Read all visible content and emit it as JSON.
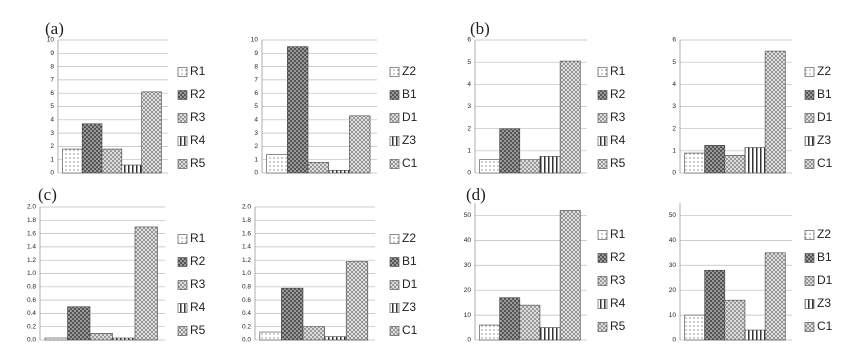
{
  "chart_data": [
    {
      "type": "bar",
      "panel_label": "(a)",
      "categories": [
        "R1",
        "R2",
        "R3",
        "R4",
        "R5"
      ],
      "values": [
        1.8,
        3.7,
        1.8,
        0.6,
        6.1
      ],
      "ylim": [
        0,
        10
      ],
      "yticks": [
        0,
        1,
        2,
        3,
        4,
        5,
        6,
        7,
        8,
        9,
        10
      ],
      "grid": true
    },
    {
      "type": "bar",
      "categories": [
        "Z2",
        "B1",
        "D1",
        "Z3",
        "C1"
      ],
      "values": [
        1.4,
        9.5,
        0.8,
        0.2,
        4.3
      ],
      "ylim": [
        0,
        10
      ],
      "yticks": [
        0,
        1,
        2,
        3,
        4,
        5,
        6,
        7,
        8,
        9,
        10
      ],
      "grid": true
    },
    {
      "type": "bar",
      "panel_label": "(b)",
      "categories": [
        "R1",
        "R2",
        "R3",
        "R4",
        "R5"
      ],
      "values": [
        0.6,
        2.0,
        0.6,
        0.75,
        5.05
      ],
      "ylim": [
        0,
        6
      ],
      "yticks": [
        0,
        1,
        2,
        3,
        4,
        5,
        6
      ],
      "grid": true
    },
    {
      "type": "bar",
      "categories": [
        "Z2",
        "B1",
        "D1",
        "Z3",
        "C1"
      ],
      "values": [
        0.9,
        1.25,
        0.8,
        1.15,
        5.5
      ],
      "ylim": [
        0,
        6
      ],
      "yticks": [
        0,
        1,
        2,
        3,
        4,
        5,
        6
      ],
      "grid": true
    },
    {
      "type": "bar",
      "panel_label": "(c)",
      "categories": [
        "R1",
        "R2",
        "R3",
        "R4",
        "R5"
      ],
      "values": [
        0.03,
        0.5,
        0.1,
        0.03,
        1.7
      ],
      "ylim": [
        0,
        2
      ],
      "yticks": [
        {
          "value": 0,
          "label": "0.0"
        },
        0.2,
        0.4,
        0.6,
        0.8,
        {
          "value": 1,
          "label": "1.0"
        },
        1.2,
        1.4,
        1.6,
        1.8,
        {
          "value": 2,
          "label": "2.0"
        }
      ],
      "grid": true
    },
    {
      "type": "bar",
      "categories": [
        "Z2",
        "B1",
        "D1",
        "Z3",
        "C1"
      ],
      "values": [
        0.12,
        0.78,
        0.2,
        0.05,
        1.18
      ],
      "ylim": [
        0,
        2
      ],
      "yticks": [
        {
          "value": 0,
          "label": "0.0"
        },
        0.2,
        0.4,
        0.6,
        0.8,
        {
          "value": 1,
          "label": "1.0"
        },
        1.2,
        1.4,
        1.6,
        1.8,
        {
          "value": 2,
          "label": "2.0"
        }
      ],
      "grid": true
    },
    {
      "type": "bar",
      "panel_label": "(d)",
      "categories": [
        "R1",
        "R2",
        "R3",
        "R4",
        "R5"
      ],
      "values": [
        6,
        17,
        14,
        5,
        52
      ],
      "ylim": [
        0,
        55
      ],
      "yticks": [
        0,
        10,
        20,
        30,
        40,
        50
      ],
      "grid": true
    },
    {
      "type": "bar",
      "categories": [
        "Z2",
        "B1",
        "D1",
        "Z3",
        "C1"
      ],
      "values": [
        10,
        28,
        16,
        4,
        35
      ],
      "ylim": [
        0,
        55
      ],
      "yticks": [
        0,
        10,
        20,
        30,
        40,
        50
      ],
      "grid": true
    }
  ]
}
